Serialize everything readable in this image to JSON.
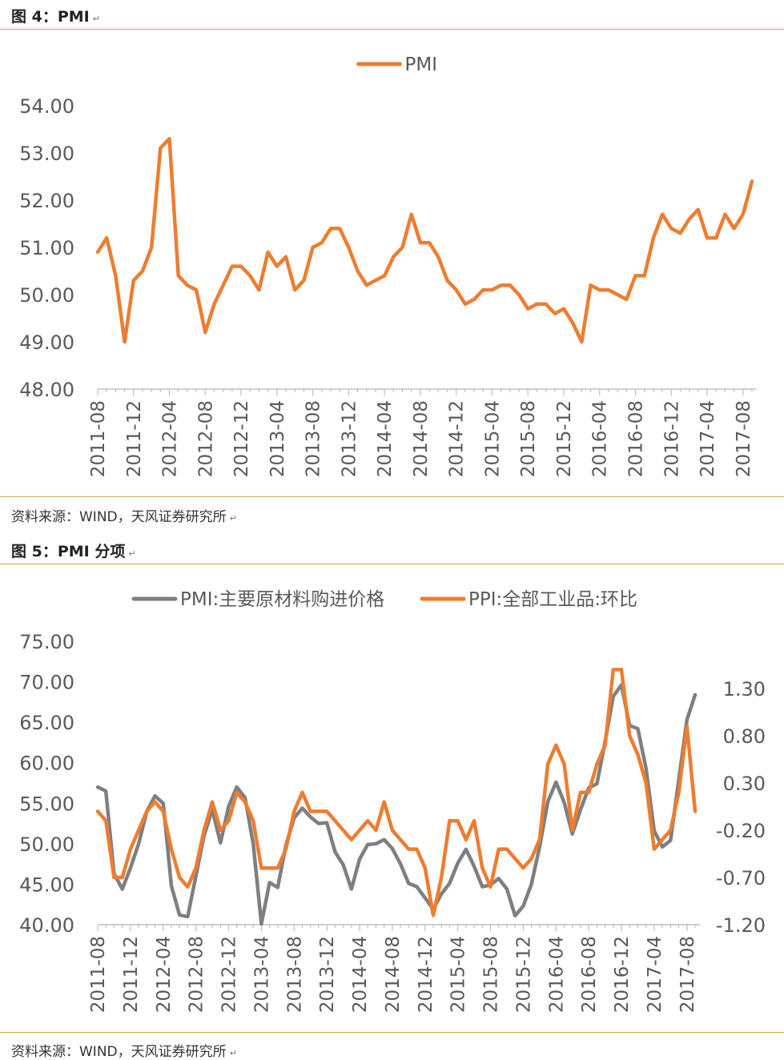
{
  "figures": [
    {
      "title": "图 4：PMI",
      "source": "资料来源：WIND，天风证券研究所",
      "chart_data": {
        "type": "line",
        "title": "",
        "xlabel": "",
        "ylabel": "",
        "ylim": [
          48,
          54
        ],
        "yticks": [
          "54.00",
          "53.00",
          "52.00",
          "51.00",
          "50.00",
          "49.00",
          "48.00"
        ],
        "ytick_values": [
          54,
          53,
          52,
          51,
          50,
          49,
          48
        ],
        "xtick_labels": [
          "2011-08",
          "2011-12",
          "2012-04",
          "2012-08",
          "2012-12",
          "2013-04",
          "2013-08",
          "2013-12",
          "2014-04",
          "2014-08",
          "2014-12",
          "2015-04",
          "2015-08",
          "2015-12",
          "2016-04",
          "2016-08",
          "2016-12",
          "2017-04",
          "2017-08"
        ],
        "legend_position": "top",
        "x": [
          "2011-08",
          "2011-09",
          "2011-10",
          "2011-11",
          "2011-12",
          "2012-01",
          "2012-02",
          "2012-03",
          "2012-04",
          "2012-05",
          "2012-06",
          "2012-07",
          "2012-08",
          "2012-09",
          "2012-10",
          "2012-11",
          "2012-12",
          "2013-01",
          "2013-02",
          "2013-03",
          "2013-04",
          "2013-05",
          "2013-06",
          "2013-07",
          "2013-08",
          "2013-09",
          "2013-10",
          "2013-11",
          "2013-12",
          "2014-01",
          "2014-02",
          "2014-03",
          "2014-04",
          "2014-05",
          "2014-06",
          "2014-07",
          "2014-08",
          "2014-09",
          "2014-10",
          "2014-11",
          "2014-12",
          "2015-01",
          "2015-02",
          "2015-03",
          "2015-04",
          "2015-05",
          "2015-06",
          "2015-07",
          "2015-08",
          "2015-09",
          "2015-10",
          "2015-11",
          "2015-12",
          "2016-01",
          "2016-02",
          "2016-03",
          "2016-04",
          "2016-05",
          "2016-06",
          "2016-07",
          "2016-08",
          "2016-09",
          "2016-10",
          "2016-11",
          "2016-12",
          "2017-01",
          "2017-02",
          "2017-03",
          "2017-04",
          "2017-05",
          "2017-06",
          "2017-07",
          "2017-08",
          "2017-09"
        ],
        "series": [
          {
            "name": "PMI",
            "color": "#ED7D31",
            "axis": "left",
            "values": [
              50.9,
              51.2,
              50.4,
              49.0,
              50.3,
              50.5,
              51.0,
              53.1,
              53.3,
              50.4,
              50.2,
              50.1,
              49.2,
              49.8,
              50.2,
              50.6,
              50.6,
              50.4,
              50.1,
              50.9,
              50.6,
              50.8,
              50.1,
              50.3,
              51.0,
              51.1,
              51.4,
              51.4,
              51.0,
              50.5,
              50.2,
              50.3,
              50.4,
              50.8,
              51.0,
              51.7,
              51.1,
              51.1,
              50.8,
              50.3,
              50.1,
              49.8,
              49.9,
              50.1,
              50.1,
              50.2,
              50.2,
              50.0,
              49.7,
              49.8,
              49.8,
              49.6,
              49.7,
              49.4,
              49.0,
              50.2,
              50.1,
              50.1,
              50.0,
              49.9,
              50.4,
              50.4,
              51.2,
              51.7,
              51.4,
              51.3,
              51.6,
              51.8,
              51.2,
              51.2,
              51.7,
              51.4,
              51.7,
              52.4
            ]
          }
        ]
      }
    },
    {
      "title": "图 5：PMI 分项",
      "source": "资料来源：WIND，天风证券研究所",
      "chart_data": {
        "type": "line",
        "title": "",
        "xlabel": "",
        "ylabel": "",
        "ylim": [
          40,
          75
        ],
        "yticks": [
          "75.00",
          "70.00",
          "65.00",
          "60.00",
          "55.00",
          "50.00",
          "45.00",
          "40.00"
        ],
        "ytick_values": [
          75,
          70,
          65,
          60,
          55,
          50,
          45,
          40
        ],
        "y2lim": [
          -1.2,
          1.8
        ],
        "y2ticks": [
          "1.30",
          "0.80",
          "0.30",
          "-0.20",
          "-0.70",
          "-1.20"
        ],
        "y2tick_values": [
          1.3,
          0.8,
          0.3,
          -0.2,
          -0.7,
          -1.2
        ],
        "xtick_labels": [
          "2011-08",
          "2011-12",
          "2012-04",
          "2012-08",
          "2012-12",
          "2013-04",
          "2013-08",
          "2013-12",
          "2014-04",
          "2014-08",
          "2014-12",
          "2015-04",
          "2015-08",
          "2015-12",
          "2016-04",
          "2016-08",
          "2016-12",
          "2017-04",
          "2017-08"
        ],
        "legend_position": "top",
        "x": [
          "2011-08",
          "2011-09",
          "2011-10",
          "2011-11",
          "2011-12",
          "2012-01",
          "2012-02",
          "2012-03",
          "2012-04",
          "2012-05",
          "2012-06",
          "2012-07",
          "2012-08",
          "2012-09",
          "2012-10",
          "2012-11",
          "2012-12",
          "2013-01",
          "2013-02",
          "2013-03",
          "2013-04",
          "2013-05",
          "2013-06",
          "2013-07",
          "2013-08",
          "2013-09",
          "2013-10",
          "2013-11",
          "2013-12",
          "2014-01",
          "2014-02",
          "2014-03",
          "2014-04",
          "2014-05",
          "2014-06",
          "2014-07",
          "2014-08",
          "2014-09",
          "2014-10",
          "2014-11",
          "2014-12",
          "2015-01",
          "2015-02",
          "2015-03",
          "2015-04",
          "2015-05",
          "2015-06",
          "2015-07",
          "2015-08",
          "2015-09",
          "2015-10",
          "2015-11",
          "2015-12",
          "2016-01",
          "2016-02",
          "2016-03",
          "2016-04",
          "2016-05",
          "2016-06",
          "2016-07",
          "2016-08",
          "2016-09",
          "2016-10",
          "2016-11",
          "2016-12",
          "2017-01",
          "2017-02",
          "2017-03",
          "2017-04",
          "2017-05",
          "2017-06",
          "2017-07",
          "2017-08",
          "2017-09"
        ],
        "series": [
          {
            "name": "PMI:主要原材料购进价格",
            "color": "#7F7F7F",
            "axis": "left",
            "values": [
              57.0,
              56.5,
              46.3,
              44.4,
              47.0,
              50.0,
              54.0,
              55.9,
              55.0,
              44.8,
              41.2,
              41.0,
              46.0,
              51.0,
              54.2,
              50.1,
              54.6,
              57.0,
              55.7,
              50.0,
              40.1,
              45.2,
              44.6,
              49.8,
              53.2,
              54.4,
              53.3,
              52.5,
              52.6,
              49.0,
              47.4,
              44.4,
              48.1,
              49.9,
              50.0,
              50.5,
              49.4,
              47.5,
              45.1,
              44.7,
              43.3,
              41.9,
              43.8,
              45.1,
              47.6,
              49.3,
              47.2,
              44.7,
              44.9,
              45.7,
              44.4,
              41.1,
              42.3,
              45.0,
              49.6,
              55.2,
              57.6,
              55.1,
              51.2,
              54.2,
              56.9,
              57.4,
              62.6,
              68.2,
              69.6,
              64.6,
              64.2,
              59.3,
              51.6,
              49.6,
              50.4,
              57.9,
              65.3,
              68.4
            ]
          },
          {
            "name": "PPI:全部工业品:环比",
            "color": "#ED7D31",
            "axis": "right",
            "values": [
              0.0,
              -0.1,
              -0.7,
              -0.7,
              -0.4,
              -0.2,
              0.0,
              0.1,
              0.0,
              -0.4,
              -0.7,
              -0.8,
              -0.6,
              -0.2,
              0.1,
              -0.2,
              -0.1,
              0.2,
              0.1,
              -0.1,
              -0.6,
              -0.6,
              -0.6,
              -0.4,
              0.0,
              0.2,
              0.0,
              0.0,
              0.0,
              -0.1,
              -0.2,
              -0.3,
              -0.2,
              -0.1,
              -0.2,
              0.1,
              -0.2,
              -0.3,
              -0.4,
              -0.4,
              -0.6,
              -1.1,
              -0.7,
              -0.1,
              -0.1,
              -0.3,
              -0.1,
              -0.6,
              -0.8,
              -0.4,
              -0.4,
              -0.5,
              -0.6,
              -0.5,
              -0.3,
              0.5,
              0.7,
              0.5,
              -0.2,
              0.2,
              0.2,
              0.5,
              0.7,
              1.5,
              1.5,
              0.8,
              0.6,
              0.3,
              -0.4,
              -0.3,
              -0.2,
              0.2,
              0.9,
              0.0
            ]
          }
        ]
      }
    }
  ]
}
